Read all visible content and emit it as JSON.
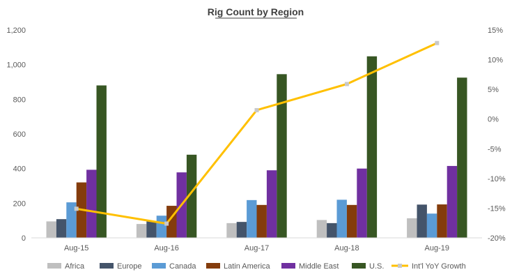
{
  "chart_data": {
    "type": "bar",
    "title": "Rig Count by Region",
    "categories": [
      "Aug-15",
      "Aug-16",
      "Aug-17",
      "Aug-18",
      "Aug-19"
    ],
    "y_left": {
      "range": [
        0,
        1200
      ],
      "ticks": [
        0,
        200,
        400,
        600,
        800,
        1000,
        1200
      ],
      "tick_labels": [
        "0",
        "200",
        "400",
        "600",
        "800",
        "1,000",
        "1,200"
      ]
    },
    "y_right": {
      "range": [
        -20,
        15
      ],
      "ticks": [
        -20,
        -15,
        -10,
        -5,
        0,
        5,
        10,
        15
      ],
      "tick_labels": [
        "-20%",
        "-15%",
        "-10%",
        "-5%",
        "0%",
        "5%",
        "10%",
        "15%"
      ]
    },
    "series": [
      {
        "name": "Africa",
        "color": "#bfbfbf",
        "values": [
          95,
          80,
          85,
          103,
          113
        ]
      },
      {
        "name": "Europe",
        "color": "#44546a",
        "values": [
          108,
          95,
          92,
          85,
          192
        ]
      },
      {
        "name": "Canada",
        "color": "#5b9bd5",
        "values": [
          205,
          128,
          218,
          220,
          140
        ]
      },
      {
        "name": "Latin America",
        "color": "#843c0c",
        "values": [
          320,
          185,
          190,
          190,
          193
        ]
      },
      {
        "name": "Middle East",
        "color": "#7030a0",
        "values": [
          393,
          378,
          390,
          400,
          415
        ]
      },
      {
        "name": "U.S.",
        "color": "#375623",
        "values": [
          880,
          480,
          945,
          1048,
          925
        ]
      }
    ],
    "line_series": {
      "name": "Int'l YoY Growth",
      "color": "#ffc000",
      "marker_color": "#c9c9c9",
      "axis": "right",
      "values": [
        -15.1,
        -17.6,
        1.5,
        5.9,
        12.8
      ]
    },
    "legend_position": "bottom",
    "grid": false
  }
}
